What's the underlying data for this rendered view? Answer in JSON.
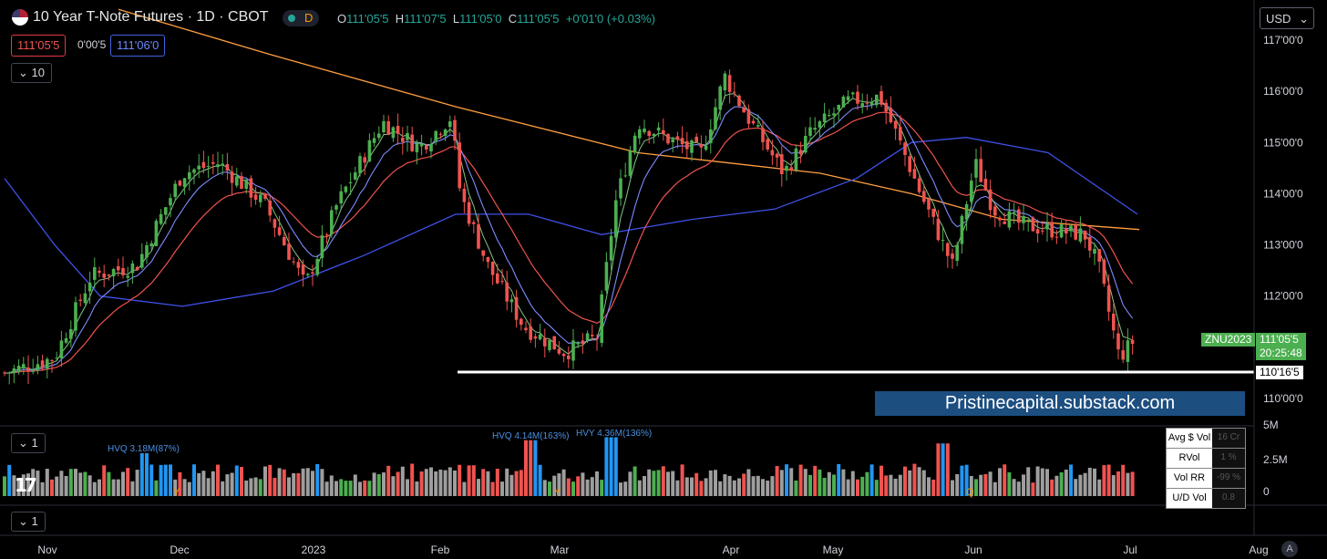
{
  "header": {
    "title": "10 Year T-Note Futures · 1D · CBOT",
    "status_letter": "D",
    "ohlc": {
      "o_label": "O",
      "o": "111'05'5",
      "h_label": "H",
      "h": "111'07'5",
      "l_label": "L",
      "l": "111'05'0",
      "c_label": "C",
      "c": "111'05'5",
      "change": "+0'01'0 (+0.03%)"
    },
    "bid": "111'05'5",
    "spread": "0'00'5",
    "ask": "111'06'0",
    "indicator_count": "10",
    "currency": "USD"
  },
  "price_axis": {
    "labels": [
      "117'00'0",
      "116'00'0",
      "115'00'0",
      "114'00'0",
      "113'00'0",
      "112'00'0",
      "110'00'0"
    ],
    "symbol_tag": "ZNU2023",
    "last_price": "111'05'5",
    "countdown": "20:25:48",
    "level_tag": "110'16'5"
  },
  "volume_pane": {
    "indicator_count": "1",
    "axis_labels": [
      "5M",
      "2.5M",
      "0"
    ],
    "annotations": [
      {
        "text": "HVQ 3.18M(87%)"
      },
      {
        "text": "HVQ 4.14M(163%)"
      },
      {
        "text": "HVY 4.36M(136%)"
      }
    ],
    "markers": [
      "Y",
      "Y",
      "Q"
    ],
    "stats": [
      {
        "label": "Avg $ Vol",
        "value": "16 Cr"
      },
      {
        "label": "RVol",
        "value": "1 %"
      },
      {
        "label": "Vol RR",
        "value": "-99 %"
      },
      {
        "label": "U/D Vol",
        "value": "0.8"
      }
    ]
  },
  "pane3": {
    "indicator_count": "1"
  },
  "time_axis": [
    "Nov",
    "Dec",
    "2023",
    "Feb",
    "Mar",
    "Apr",
    "May",
    "Jun",
    "Jul",
    "Aug"
  ],
  "watermark": "Pristinecapital.substack.com",
  "footer": {
    "a_button": "A"
  },
  "colors": {
    "up": "#26a69a",
    "down": "#ef5350",
    "up_candle": "#4caf50",
    "ma_short": "#81c784",
    "ma_blue_short": "#7e8cff",
    "ma_red": "#ef5350",
    "ma_blue_long": "#3f51e8",
    "ma_orange": "#ff9f40",
    "vol_blue": "#2196f3",
    "vol_gray": "#9e9e9e"
  },
  "chart_data": {
    "type": "line",
    "title": "10 Year T-Note Futures · 1D · CBOT",
    "xlabel": "",
    "ylabel": "",
    "ylim": [
      109.5,
      117.0
    ],
    "x": [
      "Nov",
      "Dec",
      "2023",
      "Feb",
      "Mar",
      "Apr",
      "May",
      "Jun",
      "Jul"
    ],
    "series": [
      {
        "values": [
          110.5,
          113.2,
          113.5,
          115.5,
          111.1,
          115.6,
          116.3,
          113.0,
          111.2
        ]
      }
    ],
    "support_level": 110.52,
    "volume": {
      "ylim": [
        0,
        5.0
      ],
      "unit": "M"
    }
  }
}
